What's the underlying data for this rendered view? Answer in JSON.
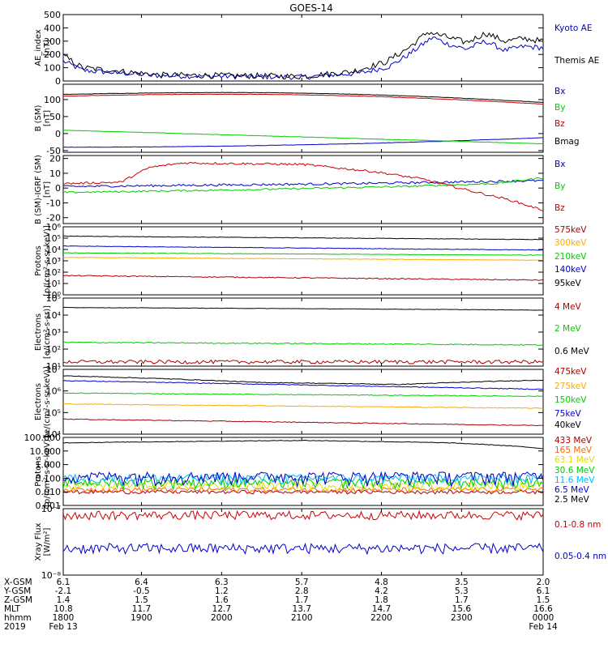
{
  "title": "GOES-14",
  "chart_data": [
    {
      "type": "line",
      "ylabel": [
        "AE_index",
        "[nT]"
      ],
      "ylim": [
        0,
        500
      ],
      "scale": "linear",
      "yticks": [
        {
          "v": 0,
          "t": "0"
        },
        {
          "v": 100,
          "t": "100"
        },
        {
          "v": 200,
          "t": "200"
        },
        {
          "v": 300,
          "t": "300"
        },
        {
          "v": 400,
          "t": "400"
        },
        {
          "v": 500,
          "t": "500"
        }
      ],
      "series": [
        {
          "name": "Kyoto AE",
          "color": "#0000cc",
          "shape": "ae_kyoto"
        },
        {
          "name": "Themis AE",
          "color": "#000000",
          "shape": "ae_themis"
        }
      ]
    },
    {
      "type": "line",
      "ylabel": [
        "B (SM)",
        "[nT]"
      ],
      "ylim": [
        -55,
        145
      ],
      "scale": "linear",
      "yticks": [
        {
          "v": -50,
          "t": "-50"
        },
        {
          "v": 0,
          "t": "0"
        },
        {
          "v": 50,
          "t": "50"
        },
        {
          "v": 100,
          "t": "100"
        }
      ],
      "series": [
        {
          "name": "Bx",
          "color": "#0000cc",
          "shape": "bsm_bx"
        },
        {
          "name": "By",
          "color": "#00cc00",
          "shape": "bsm_by"
        },
        {
          "name": "Bz",
          "color": "#cc0000",
          "shape": "bsm_bz"
        },
        {
          "name": "Bmag",
          "color": "#000000",
          "shape": "bsm_bmag"
        }
      ]
    },
    {
      "type": "line",
      "ylabel": [
        "B (SM)-IGRF (SM)",
        "[nT]"
      ],
      "ylim": [
        -24,
        22
      ],
      "scale": "linear",
      "yticks": [
        {
          "v": -20,
          "t": "-20"
        },
        {
          "v": -10,
          "t": "-10"
        },
        {
          "v": 0,
          "t": "0"
        },
        {
          "v": 10,
          "t": "10"
        },
        {
          "v": 20,
          "t": "20"
        }
      ],
      "series": [
        {
          "name": "Bx",
          "color": "#0000cc",
          "shape": "db_bx"
        },
        {
          "name": "By",
          "color": "#00cc00",
          "shape": "db_by"
        },
        {
          "name": "Bz",
          "color": "#cc0000",
          "shape": "db_bz"
        }
      ]
    },
    {
      "type": "line",
      "ylabel": [
        "Protons",
        "[p/(cm²-s-sr-keV)]"
      ],
      "ylim": [
        1,
        1000000
      ],
      "scale": "log",
      "yticks": [
        {
          "v": 1,
          "t": "10⁰"
        },
        {
          "v": 10,
          "t": "10¹"
        },
        {
          "v": 100,
          "t": "10²"
        },
        {
          "v": 1000,
          "t": "10³"
        },
        {
          "v": 10000,
          "t": "10⁴"
        },
        {
          "v": 100000,
          "t": "10⁵"
        },
        {
          "v": 1000000,
          "t": "10⁶"
        }
      ],
      "series": [
        {
          "name": "575keV",
          "color": "#aa0000",
          "shape": "p_575"
        },
        {
          "name": "300keV",
          "color": "#ffaa00",
          "shape": "p_300"
        },
        {
          "name": "210keV",
          "color": "#00cc00",
          "shape": "p_210"
        },
        {
          "name": "140keV",
          "color": "#0000cc",
          "shape": "p_140"
        },
        {
          "name": "95keV",
          "color": "#000000",
          "shape": "p_95"
        }
      ]
    },
    {
      "type": "line",
      "ylabel": [
        "Electrons",
        "[e/(cm²-s-sr)]"
      ],
      "ylim": [
        10,
        100000
      ],
      "scale": "log",
      "yticks": [
        {
          "v": 10,
          "t": "10¹"
        },
        {
          "v": 100,
          "t": "10²"
        },
        {
          "v": 1000,
          "t": "10³"
        },
        {
          "v": 10000,
          "t": "10⁴"
        },
        {
          "v": 100000,
          "t": "10⁵"
        }
      ],
      "series": [
        {
          "name": "4 MeV",
          "color": "#aa0000",
          "shape": "e_4"
        },
        {
          "name": "2 MeV",
          "color": "#00cc00",
          "shape": "e_2"
        },
        {
          "name": "0.6 MeV",
          "color": "#000000",
          "shape": "e_06"
        }
      ]
    },
    {
      "type": "line",
      "ylabel": [
        "Electrons",
        "[e/(cm²-s-sr-keV)]"
      ],
      "ylim": [
        10000,
        10000000
      ],
      "scale": "log",
      "yticks": [
        {
          "v": 10000,
          "t": "10⁴"
        },
        {
          "v": 100000,
          "t": "10⁵"
        },
        {
          "v": 1000000,
          "t": "10⁶"
        },
        {
          "v": 10000000,
          "t": "10⁷"
        }
      ],
      "series": [
        {
          "name": "475keV",
          "color": "#aa0000",
          "shape": "me_475"
        },
        {
          "name": "275keV",
          "color": "#ffaa00",
          "shape": "me_275"
        },
        {
          "name": "150keV",
          "color": "#00cc00",
          "shape": "me_150"
        },
        {
          "name": "75keV",
          "color": "#0000cc",
          "shape": "me_75"
        },
        {
          "name": "40keV",
          "color": "#000000",
          "shape": "me_40"
        }
      ]
    },
    {
      "type": "line",
      "ylabel": [
        "Protons",
        "[p/(cm²-s-sr-keV)]"
      ],
      "ylim": [
        0.001,
        100
      ],
      "scale": "log",
      "yticks": [
        {
          "v": 0.001,
          "t": "0.001"
        },
        {
          "v": 0.01,
          "t": "0.010"
        },
        {
          "v": 0.1,
          "t": "0.100"
        },
        {
          "v": 1,
          "t": "1.000"
        },
        {
          "v": 10,
          "t": "10.000"
        },
        {
          "v": 100,
          "t": "100.000"
        }
      ],
      "series": [
        {
          "name": "433 MeV",
          "color": "#aa0000",
          "shape": "hp_433"
        },
        {
          "name": "165 MeV",
          "color": "#ff6600",
          "shape": "hp_165"
        },
        {
          "name": "63.1 MeV",
          "color": "#dddd00",
          "shape": "hp_63"
        },
        {
          "name": "30.6 MeV",
          "color": "#00cc00",
          "shape": "hp_30"
        },
        {
          "name": "11.6 MeV",
          "color": "#00bbff",
          "shape": "hp_11"
        },
        {
          "name": "6.5 MeV",
          "color": "#0000cc",
          "shape": "hp_65"
        },
        {
          "name": "2.5 MeV",
          "color": "#000000",
          "shape": "hp_25"
        }
      ]
    },
    {
      "type": "line",
      "ylabel": [
        "Xray Flux",
        "[W/m²]"
      ],
      "ylim": [
        1e-08,
        1e-07
      ],
      "scale": "log",
      "yticks": [
        {
          "v": 1e-08,
          "t": "10⁻⁸"
        },
        {
          "v": 1e-07,
          "t": "10⁻⁷"
        }
      ],
      "series": [
        {
          "name": "0.1-0.8 nm",
          "color": "#cc0000",
          "shape": "x_long"
        },
        {
          "name": "0.05-0.4 nm",
          "color": "#0000cc",
          "shape": "x_short"
        }
      ]
    }
  ],
  "xaxis": {
    "rows": [
      {
        "label": "X-GSM",
        "values": [
          "6.1",
          "6.4",
          "6.3",
          "5.7",
          "4.8",
          "3.5",
          "2.0"
        ]
      },
      {
        "label": "Y-GSM",
        "values": [
          "-2.1",
          "-0.5",
          "1.2",
          "2.8",
          "4.2",
          "5.3",
          "6.1"
        ]
      },
      {
        "label": "Z-GSM",
        "values": [
          "1.4",
          "1.5",
          "1.6",
          "1.7",
          "1.8",
          "1.7",
          "1.5"
        ]
      },
      {
        "label": "MLT",
        "values": [
          "10.8",
          "11.7",
          "12.7",
          "13.7",
          "14.7",
          "15.6",
          "16.6"
        ]
      },
      {
        "label": "hhmm",
        "values": [
          "1800",
          "1900",
          "2000",
          "2100",
          "2200",
          "2300",
          "0000"
        ]
      }
    ],
    "year_label": "2019",
    "start_date": "Feb 13",
    "end_date": "Feb 14"
  }
}
